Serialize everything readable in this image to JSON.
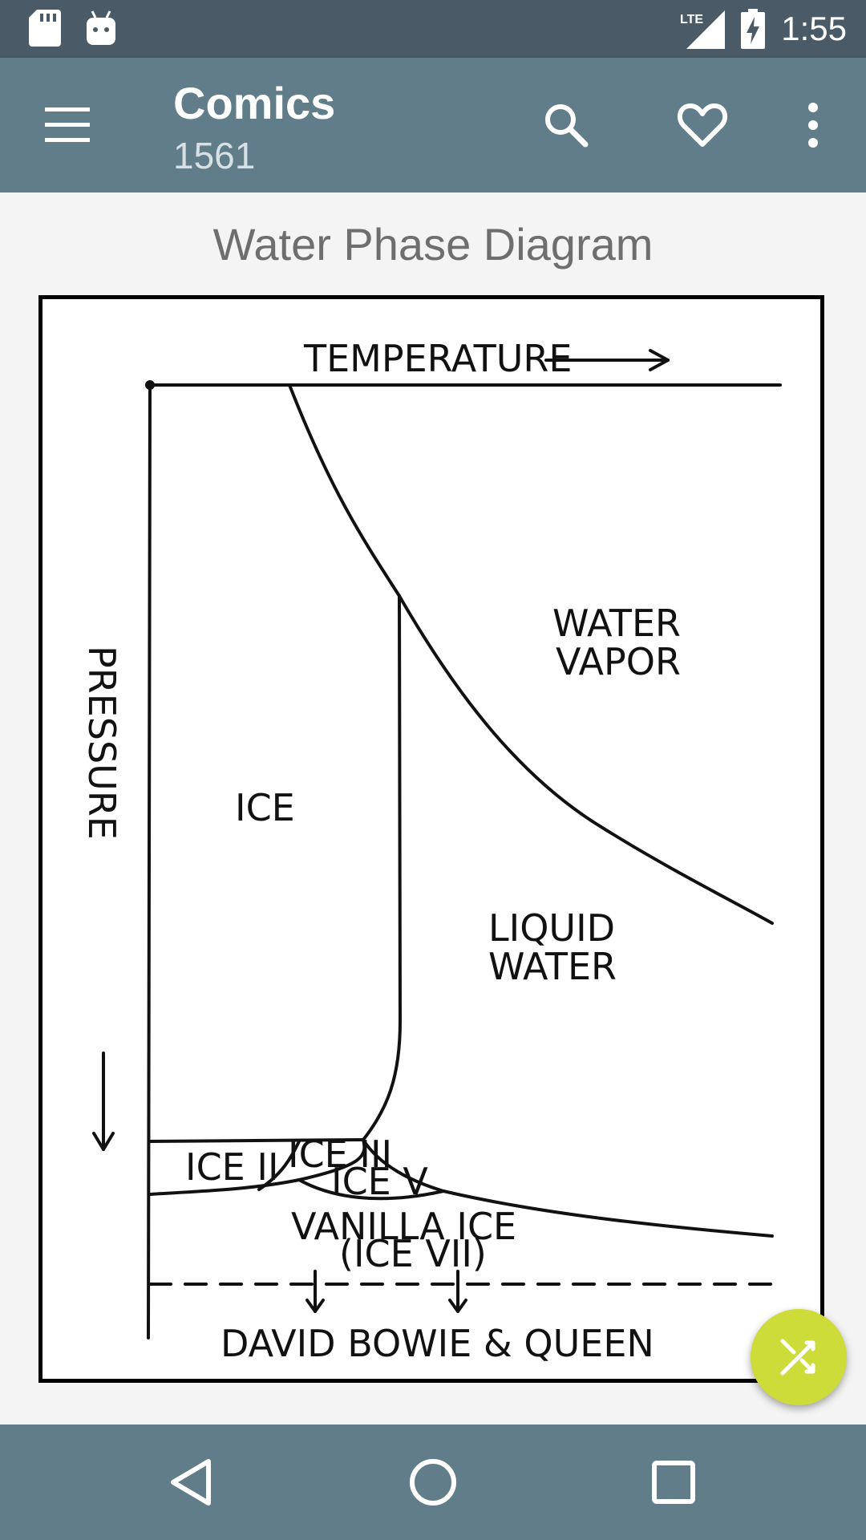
{
  "status_bar": {
    "time": "1:55",
    "network": "LTE",
    "icons": [
      "sd-card-icon",
      "android-icon",
      "lte-signal-icon",
      "battery-charging-icon"
    ]
  },
  "app_bar": {
    "title": "Comics",
    "subtitle": "1561",
    "icons": [
      "menu-icon",
      "search-icon",
      "favorite-icon",
      "more-vert-icon"
    ]
  },
  "comic": {
    "title": "Water Phase Diagram",
    "labels": {
      "temperature": "TEMPERATURE",
      "pressure": "PRESSURE",
      "ice": "ICE",
      "water_vapor_1": "WATER",
      "water_vapor_2": "VAPOR",
      "liquid_water_1": "LIQUID",
      "liquid_water_2": "WATER",
      "ice_2": "ICE II",
      "ice_3": "ICE III",
      "ice_5": "ICE V",
      "vanilla_ice": "VANILLA ICE",
      "ice_7": "(ICE VII)",
      "bowie": "DAVID BOWIE & QUEEN"
    }
  },
  "fab": {
    "icon": "shuffle-icon"
  },
  "nav_bar": {
    "icons": [
      "back-icon",
      "home-icon",
      "recents-icon"
    ]
  },
  "colors": {
    "status_bar": "#4a5a66",
    "app_bar": "#627d8a",
    "fab": "#cddc39",
    "title_text": "#6e6e6e"
  }
}
